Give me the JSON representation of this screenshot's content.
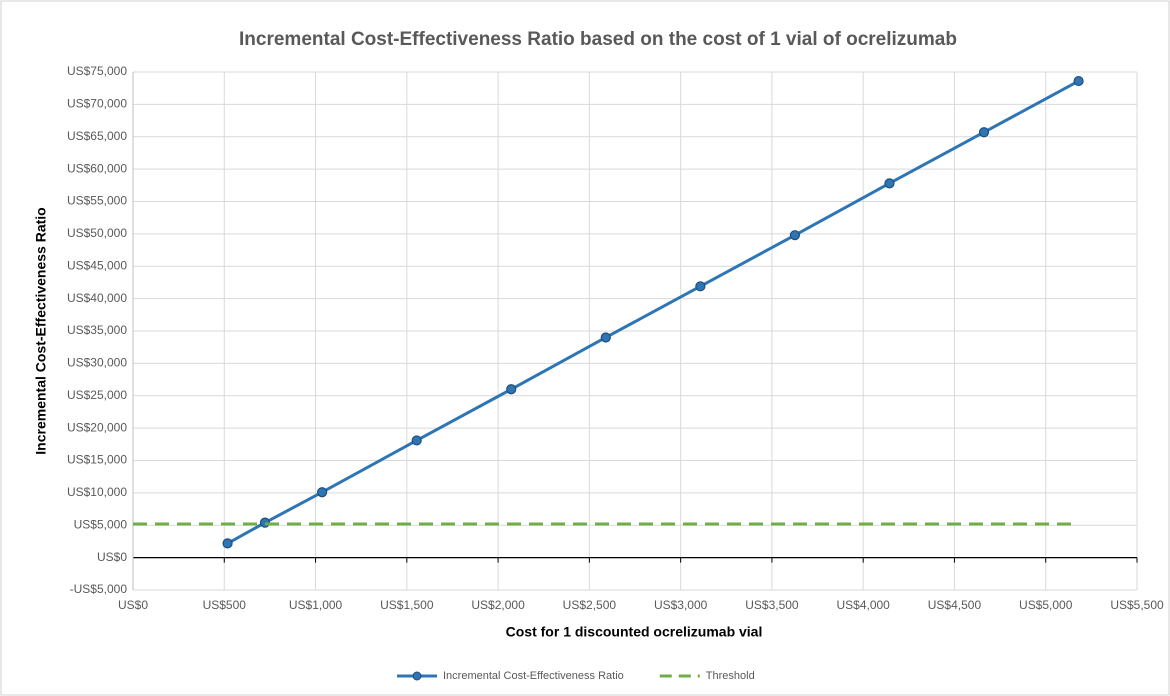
{
  "chart_data": {
    "type": "line",
    "title": "Incremental Cost-Effectiveness Ratio based on the cost of 1 vial of ocrelizumab",
    "x_label": "Cost for 1 discounted ocrelizumab vial",
    "y_label": "Incremental Cost-Effectiveness Ratio",
    "series": [
      {
        "name": "Incremental Cost-Effectiveness Ratio",
        "color": "#2e75b6",
        "style": "solid",
        "markers": true,
        "x": [
          518,
          723,
          1036,
          1554,
          2072,
          2590,
          3108,
          3626,
          4144,
          4662,
          5180
        ],
        "values": [
          2200,
          5400,
          10100,
          18100,
          26000,
          34000,
          41900,
          49800,
          57800,
          65700,
          73600
        ]
      },
      {
        "name": "Threshold",
        "color": "#70ad47",
        "style": "dashed",
        "markers": false,
        "x": [
          0,
          5180
        ],
        "values": [
          5200,
          5200
        ]
      }
    ],
    "xlim": [
      0,
      5500
    ],
    "xticks": [
      {
        "value": 0,
        "label": "US$0"
      },
      {
        "value": 500,
        "label": "US$500"
      },
      {
        "value": 1000,
        "label": "US$1,000"
      },
      {
        "value": 1500,
        "label": "US$1,500"
      },
      {
        "value": 2000,
        "label": "US$2,000"
      },
      {
        "value": 2500,
        "label": "US$2,500"
      },
      {
        "value": 3000,
        "label": "US$3,000"
      },
      {
        "value": 3500,
        "label": "US$3,500"
      },
      {
        "value": 4000,
        "label": "US$4,000"
      },
      {
        "value": 4500,
        "label": "US$4,500"
      },
      {
        "value": 5000,
        "label": "US$5,000"
      },
      {
        "value": 5500,
        "label": "US$5,500"
      }
    ],
    "ylim": [
      -5000,
      75000
    ],
    "yticks": [
      {
        "value": -5000,
        "label": "-US$5,000"
      },
      {
        "value": 0,
        "label": "US$0"
      },
      {
        "value": 5000,
        "label": "US$5,000"
      },
      {
        "value": 10000,
        "label": "US$10,000"
      },
      {
        "value": 15000,
        "label": "US$15,000"
      },
      {
        "value": 20000,
        "label": "US$20,000"
      },
      {
        "value": 25000,
        "label": "US$25,000"
      },
      {
        "value": 30000,
        "label": "US$30,000"
      },
      {
        "value": 35000,
        "label": "US$35,000"
      },
      {
        "value": 40000,
        "label": "US$40,000"
      },
      {
        "value": 45000,
        "label": "US$45,000"
      },
      {
        "value": 50000,
        "label": "US$50,000"
      },
      {
        "value": 55000,
        "label": "US$55,000"
      },
      {
        "value": 60000,
        "label": "US$60,000"
      },
      {
        "value": 65000,
        "label": "US$65,000"
      },
      {
        "value": 70000,
        "label": "US$70,000"
      },
      {
        "value": 75000,
        "label": "US$75,000"
      }
    ],
    "grid": true,
    "legend": "bottom"
  }
}
